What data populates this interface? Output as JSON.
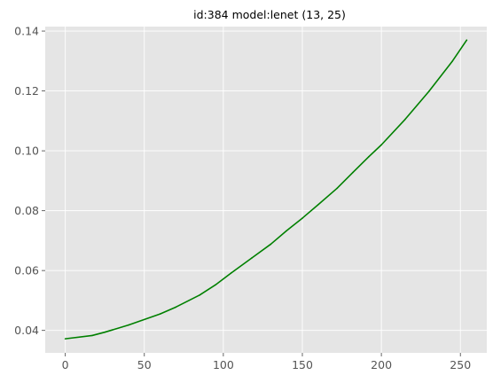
{
  "chart_data": {
    "type": "line",
    "title": "id:384 model:lenet (13, 25)",
    "xlabel": "",
    "ylabel": "",
    "xlim": [
      -12.7,
      266.7
    ],
    "ylim": [
      0.0325,
      0.1415
    ],
    "xticks": [
      0,
      50,
      100,
      150,
      200,
      250
    ],
    "xtick_labels": [
      "0",
      "50",
      "100",
      "150",
      "200",
      "250"
    ],
    "yticks": [
      0.04,
      0.06,
      0.08,
      0.1,
      0.12,
      0.14
    ],
    "ytick_labels": [
      "0.04",
      "0.06",
      "0.08",
      "0.10",
      "0.12",
      "0.14"
    ],
    "grid": true,
    "style": "ggplot",
    "colors": {
      "background": "#e5e5e5",
      "grid": "#ffffff",
      "line": "#008000"
    },
    "series": [
      {
        "color": "#008000",
        "x": [
          0,
          17,
          25,
          40,
          60,
          70,
          85,
          95,
          105,
          118,
          130,
          140,
          150,
          160,
          172,
          182,
          192,
          200,
          215,
          230,
          245,
          254
        ],
        "y": [
          0.0372,
          0.0383,
          0.0394,
          0.0418,
          0.0455,
          0.0478,
          0.0518,
          0.0552,
          0.0592,
          0.0642,
          0.0688,
          0.0733,
          0.0775,
          0.082,
          0.0875,
          0.0928,
          0.098,
          0.102,
          0.1105,
          0.1198,
          0.13,
          0.137
        ]
      }
    ]
  }
}
